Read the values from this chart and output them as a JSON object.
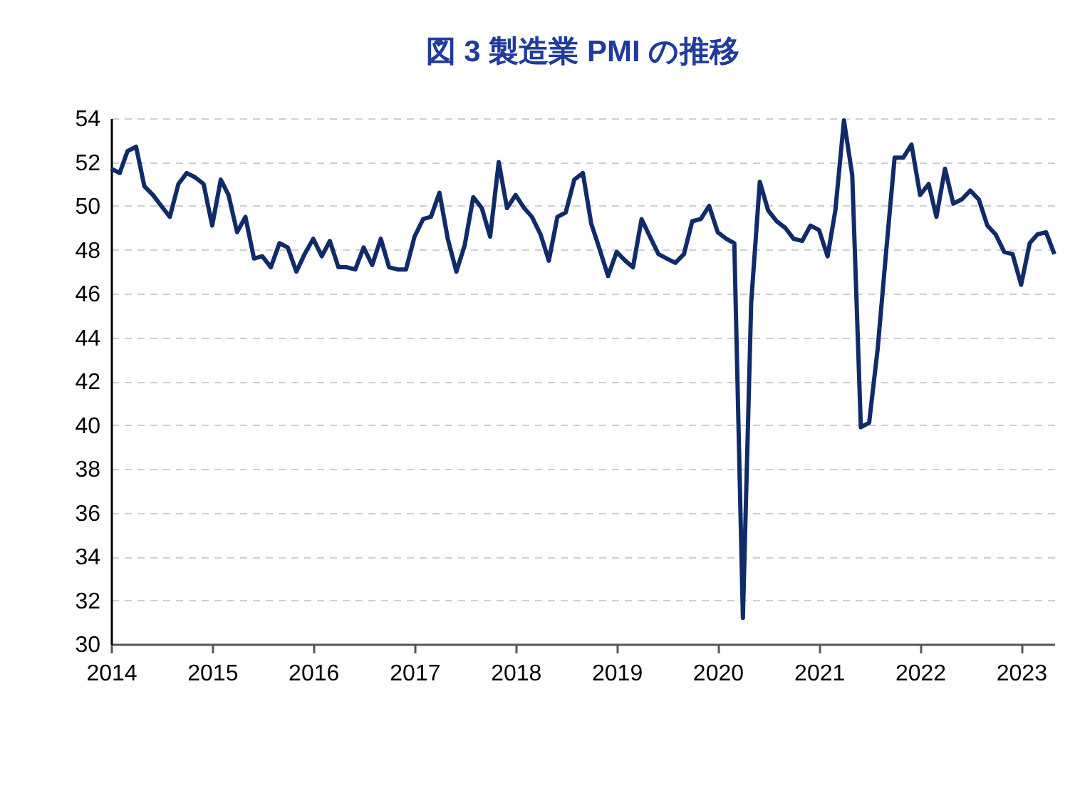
{
  "chart_data": {
    "type": "line",
    "title": "図 3  製造業 PMI の推移",
    "x": [
      "2014-01",
      "2014-02",
      "2014-03",
      "2014-04",
      "2014-05",
      "2014-06",
      "2014-07",
      "2014-08",
      "2014-09",
      "2014-10",
      "2014-11",
      "2014-12",
      "2015-01",
      "2015-02",
      "2015-03",
      "2015-04",
      "2015-05",
      "2015-06",
      "2015-07",
      "2015-08",
      "2015-09",
      "2015-10",
      "2015-11",
      "2015-12",
      "2016-01",
      "2016-02",
      "2016-03",
      "2016-04",
      "2016-05",
      "2016-06",
      "2016-07",
      "2016-08",
      "2016-09",
      "2016-10",
      "2016-11",
      "2016-12",
      "2017-01",
      "2017-02",
      "2017-03",
      "2017-04",
      "2017-05",
      "2017-06",
      "2017-07",
      "2017-08",
      "2017-09",
      "2017-10",
      "2017-11",
      "2017-12",
      "2018-01",
      "2018-02",
      "2018-03",
      "2018-04",
      "2018-05",
      "2018-06",
      "2018-07",
      "2018-08",
      "2018-09",
      "2018-10",
      "2018-11",
      "2018-12",
      "2019-01",
      "2019-02",
      "2019-03",
      "2019-04",
      "2019-05",
      "2019-06",
      "2019-07",
      "2019-08",
      "2019-09",
      "2019-10",
      "2019-11",
      "2019-12",
      "2020-01",
      "2020-02",
      "2020-03",
      "2020-04",
      "2020-05",
      "2020-06",
      "2020-07",
      "2020-08",
      "2020-09",
      "2020-10",
      "2020-11",
      "2020-12",
      "2021-01",
      "2021-02",
      "2021-03",
      "2021-04",
      "2021-05",
      "2021-06",
      "2021-07",
      "2021-08",
      "2021-09",
      "2021-10",
      "2021-11",
      "2021-12",
      "2022-01",
      "2022-02",
      "2022-03",
      "2022-04",
      "2022-05",
      "2022-06",
      "2022-07",
      "2022-08",
      "2022-09",
      "2022-10",
      "2022-11",
      "2022-12",
      "2023-01",
      "2023-02",
      "2023-03",
      "2023-04",
      "2023-05"
    ],
    "series": [
      {
        "color": "#0f2b69",
        "values": [
          51.7,
          51.5,
          52.5,
          52.7,
          50.9,
          50.5,
          50.0,
          49.5,
          51.0,
          51.5,
          51.3,
          51.0,
          49.1,
          51.2,
          50.5,
          48.8,
          49.5,
          47.6,
          47.7,
          47.2,
          48.3,
          48.1,
          47.0,
          47.8,
          48.5,
          47.7,
          48.4,
          47.2,
          47.2,
          47.1,
          48.1,
          47.3,
          48.5,
          47.2,
          47.1,
          47.1,
          48.6,
          49.4,
          49.5,
          50.6,
          48.5,
          47.0,
          48.2,
          50.4,
          49.9,
          48.6,
          52.0,
          49.9,
          50.5,
          49.9,
          49.5,
          48.7,
          47.5,
          49.5,
          49.7,
          51.2,
          51.5,
          49.2,
          48.0,
          46.8,
          47.9,
          47.5,
          47.2,
          49.4,
          48.6,
          47.8,
          47.6,
          47.4,
          47.8,
          49.3,
          49.4,
          50.0,
          48.8,
          48.5,
          48.3,
          31.2,
          45.6,
          51.1,
          49.8,
          49.3,
          49.0,
          48.5,
          48.4,
          49.1,
          48.9,
          47.7,
          49.8,
          53.9,
          51.4,
          39.9,
          40.1,
          43.5,
          48.0,
          52.2,
          52.2,
          52.8,
          50.5,
          51.0,
          49.5,
          51.7,
          50.1,
          50.3,
          50.7,
          50.3,
          49.1,
          48.7,
          47.9,
          47.8,
          46.4,
          48.3,
          48.7,
          48.8,
          47.8
        ]
      }
    ],
    "xlim": [
      "2014-01",
      "2023-05"
    ],
    "xticks": [
      {
        "value": "2014-01",
        "label": "2014"
      },
      {
        "value": "2015-01",
        "label": "2015"
      },
      {
        "value": "2016-01",
        "label": "2016"
      },
      {
        "value": "2017-01",
        "label": "2017"
      },
      {
        "value": "2018-01",
        "label": "2018"
      },
      {
        "value": "2019-01",
        "label": "2019"
      },
      {
        "value": "2020-01",
        "label": "2020"
      },
      {
        "value": "2021-01",
        "label": "2021"
      },
      {
        "value": "2022-01",
        "label": "2022"
      },
      {
        "value": "2023-01",
        "label": "2023"
      }
    ],
    "ylim": [
      30,
      54
    ],
    "yticks": [
      30,
      32,
      34,
      36,
      38,
      40,
      42,
      44,
      46,
      48,
      50,
      52,
      54
    ],
    "grid": "y",
    "legend": false,
    "line_style": "solid",
    "marker": "none"
  }
}
